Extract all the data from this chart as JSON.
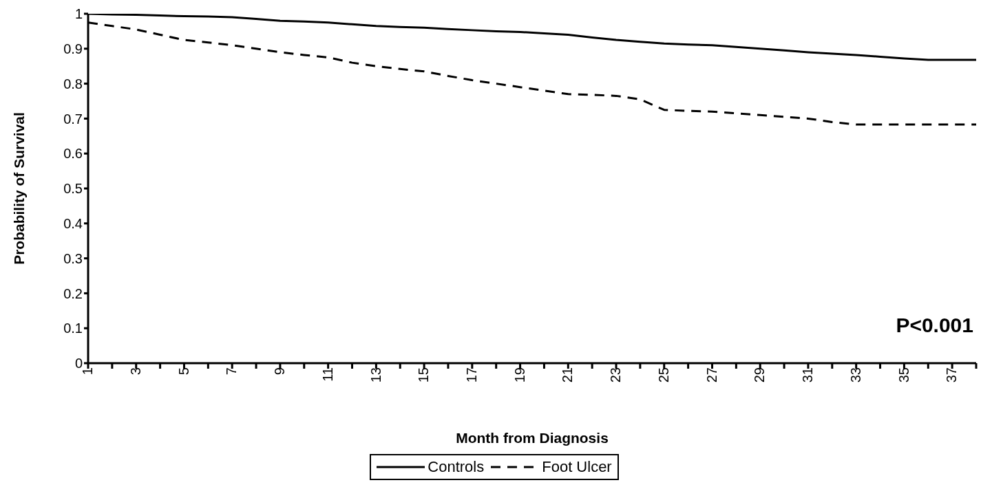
{
  "chart_data": {
    "type": "line",
    "xlabel": "Month from Diagnosis",
    "ylabel": "Probability of Survival",
    "categories": [
      "1",
      null,
      "3",
      null,
      "5",
      null,
      "7",
      null,
      "9",
      null,
      "11",
      null,
      "13",
      null,
      "15",
      null,
      "17",
      null,
      "19",
      null,
      "21",
      null,
      "23",
      null,
      "25",
      null,
      "27",
      null,
      "29",
      null,
      "31",
      null,
      "33",
      null,
      "35",
      null,
      "37",
      null
    ],
    "series": [
      {
        "name": "Controls",
        "color": "#000000",
        "line_style": "solid",
        "values": [
          1.0,
          0.998,
          0.997,
          0.995,
          0.993,
          0.992,
          0.99,
          0.985,
          0.98,
          0.978,
          0.975,
          0.97,
          0.965,
          0.962,
          0.96,
          0.956,
          0.953,
          0.95,
          0.948,
          0.944,
          0.94,
          0.932,
          0.925,
          0.92,
          0.915,
          0.912,
          0.91,
          0.905,
          0.9,
          0.895,
          0.89,
          0.886,
          0.882,
          0.877,
          0.872,
          0.868,
          0.868,
          0.868
        ]
      },
      {
        "name": "Foot Ulcer",
        "color": "#000000",
        "line_style": "dashed",
        "values": [
          0.975,
          0.965,
          0.955,
          0.94,
          0.925,
          0.918,
          0.91,
          0.9,
          0.89,
          0.882,
          0.875,
          0.86,
          0.85,
          0.842,
          0.835,
          0.822,
          0.81,
          0.8,
          0.79,
          0.78,
          0.77,
          0.768,
          0.765,
          0.755,
          0.725,
          0.722,
          0.72,
          0.715,
          0.71,
          0.705,
          0.7,
          0.69,
          0.683,
          0.683,
          0.683,
          0.683,
          0.683,
          0.683
        ]
      }
    ],
    "ylim": [
      0,
      1
    ],
    "yticks": [
      0,
      0.1,
      0.2,
      0.3,
      0.4,
      0.5,
      0.6,
      0.7,
      0.8,
      0.9,
      1
    ],
    "legend": "bottom",
    "annotations": [
      "P<0.001"
    ]
  }
}
